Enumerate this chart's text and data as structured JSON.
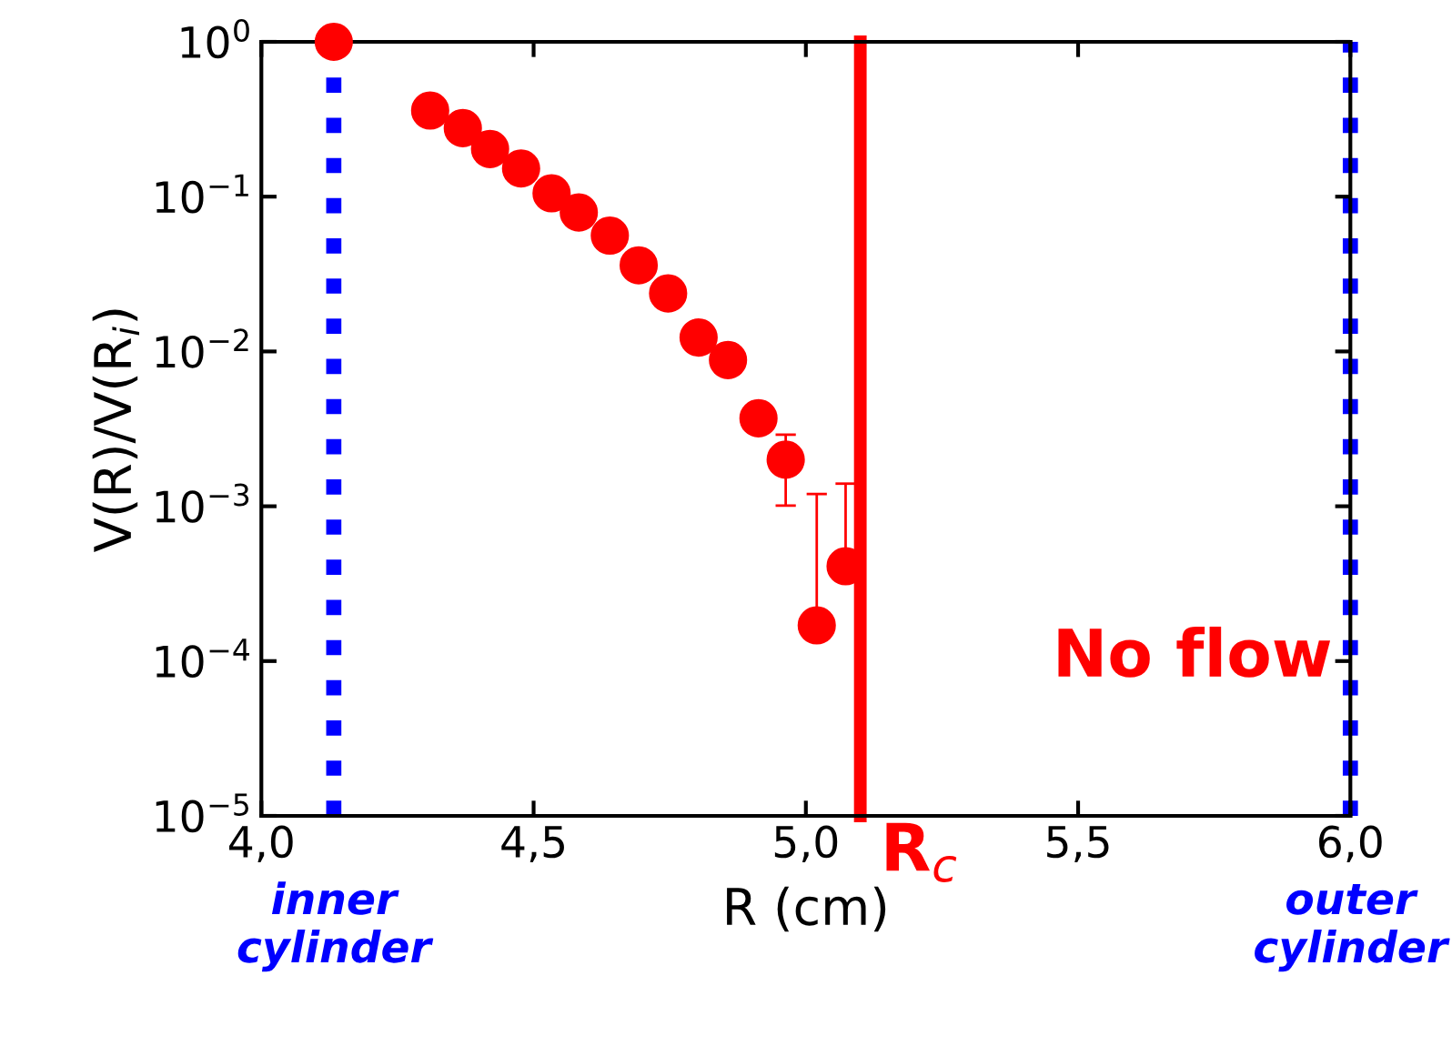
{
  "chart_data": {
    "type": "scatter",
    "xlabel": "R (cm)",
    "ylabel": "V(R)/V(R$_{i}$)",
    "log": "y",
    "xlim": [
      4.0,
      6.0
    ],
    "xticks": [
      {
        "value": 4.0,
        "label": "4,0"
      },
      {
        "value": 4.5,
        "label": "4,5"
      },
      {
        "value": 5.0,
        "label": "5,0"
      },
      {
        "value": 5.5,
        "label": "5,5"
      },
      {
        "value": 6.0,
        "label": "6,0"
      }
    ],
    "ylim": [
      1e-05,
      1
    ],
    "yticks": [
      {
        "value": 1e-05,
        "label": "10$^{−5}$"
      },
      {
        "value": 0.0001,
        "label": "10$^{−4}$"
      },
      {
        "value": 0.001,
        "label": "10$^{−3}$"
      },
      {
        "value": 0.01,
        "label": "10$^{−2}$"
      },
      {
        "value": 0.1,
        "label": "10$^{−1}$"
      },
      {
        "value": 1,
        "label": "10$^{0}$"
      }
    ],
    "x": [
      4.133,
      4.31,
      4.37,
      4.42,
      4.477,
      4.533,
      4.583,
      4.64,
      4.693,
      4.747,
      4.803,
      4.857,
      4.913,
      4.963,
      5.02,
      5.073
    ],
    "series": [
      {
        "color": "#ff0000",
        "values": [
          1,
          0.36,
          0.277,
          0.203,
          0.152,
          0.105,
          0.079,
          0.056,
          0.036,
          0.0237,
          0.0123,
          0.0088,
          0.0037,
          0.002,
          0.00017,
          0.00041
        ],
        "errors": [
          null,
          null,
          null,
          null,
          null,
          null,
          null,
          null,
          null,
          null,
          null,
          null,
          null,
          [
            0.00101,
            0.0029
          ],
          [
            0.00017,
            0.0012
          ],
          [
            0.00041,
            0.0014
          ]
        ]
      }
    ],
    "marker": "circle",
    "grid": false,
    "legend": false,
    "ref_lines": [
      {
        "axis": "x",
        "value": 4.133,
        "label": "inner\ncylinder",
        "color": "#0000ff",
        "line_style": "dotted"
      },
      {
        "axis": "x",
        "value": 5.1,
        "label": "R$_{c}$",
        "color": "#ff0000",
        "line_style": "solid"
      },
      {
        "axis": "x",
        "value": 6.0,
        "label": "outer\ncylinder",
        "color": "#0000ff",
        "line_style": "dotted"
      }
    ],
    "annotations": [
      "No flow"
    ]
  }
}
